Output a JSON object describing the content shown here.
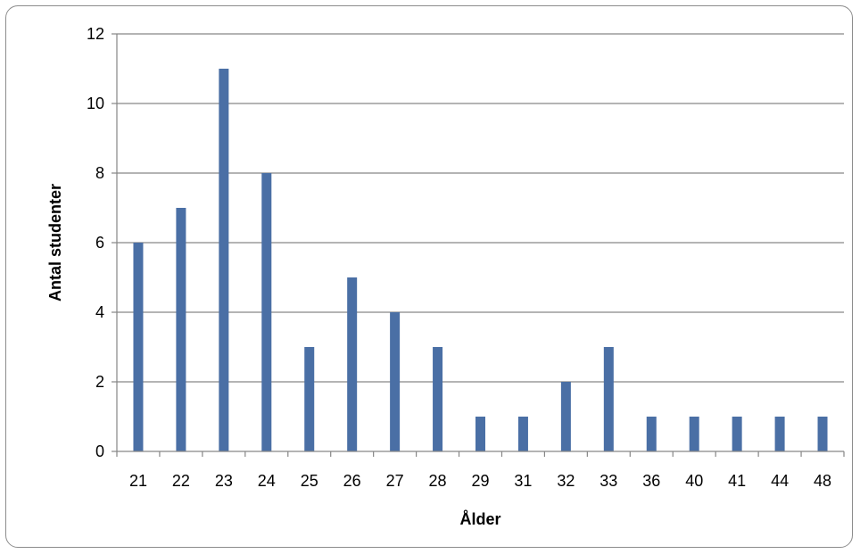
{
  "chart_data": {
    "type": "bar",
    "xlabel": "Ålder",
    "ylabel": "Antal studenter",
    "categories": [
      "21",
      "22",
      "23",
      "24",
      "25",
      "26",
      "27",
      "28",
      "29",
      "31",
      "32",
      "33",
      "36",
      "40",
      "41",
      "44",
      "48"
    ],
    "values": [
      6,
      7,
      11,
      8,
      3,
      5,
      4,
      3,
      1,
      1,
      2,
      3,
      1,
      1,
      1,
      1,
      1
    ],
    "ylim": [
      0,
      12
    ],
    "yticks": [
      "0",
      "2",
      "4",
      "6",
      "8",
      "10",
      "12"
    ],
    "grid": "horizontal",
    "legend": "none",
    "colors": {
      "bar": "#4a6fa5",
      "grid": "#868686",
      "axis": "#868686"
    }
  }
}
